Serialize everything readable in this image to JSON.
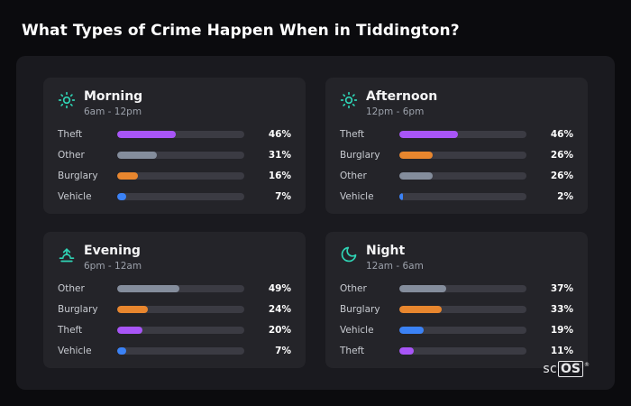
{
  "page": {
    "title": "What Types of Crime Happen When in Tiddington?"
  },
  "brand": {
    "prefix": "sc",
    "boxed": "OS",
    "reg": "®"
  },
  "colors": {
    "background": "#0b0b0e",
    "panel": "#1a1a1f",
    "card": "#242429",
    "track": "#3b3b43",
    "icon_accent": "#2fd4b5",
    "bars": {
      "Theft": "#a855f7",
      "Other": "#848d9c",
      "Burglary": "#e8862e",
      "Vehicle": "#3b82f6"
    }
  },
  "chart_data": [
    {
      "type": "bar",
      "title": "Morning",
      "subtitle": "6am - 12pm",
      "icon": "sun-icon",
      "categories": [
        "Theft",
        "Other",
        "Burglary",
        "Vehicle"
      ],
      "values": [
        46,
        31,
        16,
        7
      ],
      "unit": "%",
      "xlim": [
        0,
        100
      ]
    },
    {
      "type": "bar",
      "title": "Afternoon",
      "subtitle": "12pm - 6pm",
      "icon": "sun-icon",
      "categories": [
        "Theft",
        "Burglary",
        "Other",
        "Vehicle"
      ],
      "values": [
        46,
        26,
        26,
        2
      ],
      "unit": "%",
      "xlim": [
        0,
        100
      ]
    },
    {
      "type": "bar",
      "title": "Evening",
      "subtitle": "6pm - 12am",
      "icon": "sunset-icon",
      "categories": [
        "Other",
        "Burglary",
        "Theft",
        "Vehicle"
      ],
      "values": [
        49,
        24,
        20,
        7
      ],
      "unit": "%",
      "xlim": [
        0,
        100
      ]
    },
    {
      "type": "bar",
      "title": "Night",
      "subtitle": "12am - 6am",
      "icon": "moon-icon",
      "categories": [
        "Other",
        "Burglary",
        "Vehicle",
        "Theft"
      ],
      "values": [
        37,
        33,
        19,
        11
      ],
      "unit": "%",
      "xlim": [
        0,
        100
      ]
    }
  ]
}
